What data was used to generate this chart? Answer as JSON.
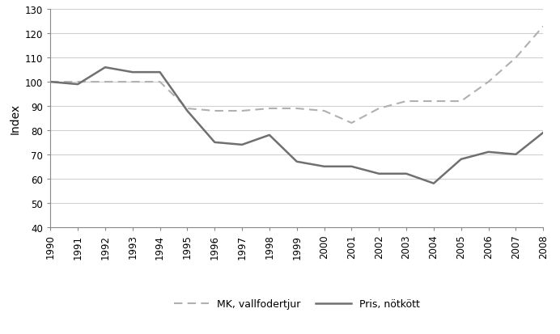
{
  "years": [
    1990,
    1991,
    1992,
    1993,
    1994,
    1995,
    1996,
    1997,
    1998,
    1999,
    2000,
    2001,
    2002,
    2003,
    2004,
    2005,
    2006,
    2007,
    2008
  ],
  "mk_vallfodertjur": [
    100,
    100,
    100,
    100,
    100,
    89,
    88,
    88,
    89,
    89,
    88,
    83,
    89,
    92,
    92,
    92,
    100,
    110,
    123
  ],
  "pris_notkott": [
    100,
    99,
    106,
    104,
    104,
    88,
    75,
    74,
    78,
    67,
    65,
    65,
    62,
    62,
    58,
    68,
    71,
    70,
    79
  ],
  "ylim": [
    40,
    130
  ],
  "yticks": [
    40,
    50,
    60,
    70,
    80,
    90,
    100,
    110,
    120,
    130
  ],
  "ylabel": "Index",
  "line_color_mk": "#b0b0b0",
  "line_color_pris": "#707070",
  "legend_mk": "MK, vallfodertjur",
  "legend_pris": "Pris, nötkött",
  "background_color": "#ffffff",
  "grid_color": "#d0d0d0"
}
